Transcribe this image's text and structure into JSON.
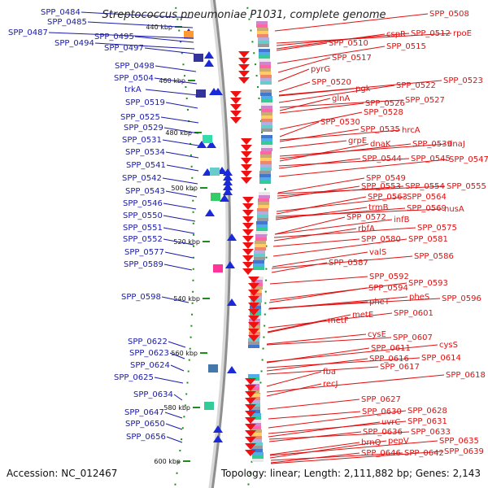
{
  "title": "Streptococcus pneumoniae P1031, complete genome",
  "footer": {
    "accession": "Accession: NC_012467",
    "summary": "Topology: linear; Length: 2,111,882 bp; Genes: 2,143"
  },
  "colors": {
    "left_label": "#1a1aa8",
    "right_label": "#e01010",
    "backbone": "#8f8f8f",
    "ruler": "#1a8f1a"
  },
  "scale_ticks": [
    "440 kbp",
    "460 kbp",
    "480 kbp",
    "500 kbp",
    "520 kbp",
    "540 kbp",
    "560 kbp",
    "580 kbp",
    "600 kbp"
  ],
  "left_labels": [
    "SPP_0484",
    "SPP_0485",
    "SPP_0487",
    "SPP_0494",
    "SPP_0495",
    "SPP_0497",
    "SPP_0498",
    "SPP_0504",
    "trkA",
    "SPP_0519",
    "SPP_0525",
    "SPP_0529",
    "SPP_0531",
    "SPP_0534",
    "SPP_0541",
    "SPP_0542",
    "SPP_0543",
    "SPP_0546",
    "SPP_0550",
    "SPP_0551",
    "SPP_0552",
    "SPP_0577",
    "SPP_0589",
    "SPP_0598",
    "SPP_0622",
    "SPP_0623",
    "SPP_0624",
    "SPP_0625",
    "SPP_0634",
    "SPP_0647",
    "SPP_0650",
    "SPP_0656"
  ],
  "right_labels": [
    "SPP_0508",
    "cspR",
    "SPP_0512",
    "rpoE",
    "SPP_0510",
    "SPP_0515",
    "SPP_0517",
    "pyrG",
    "SPP_0520",
    "pgk",
    "SPP_0522",
    "SPP_0523",
    "glnA",
    "SPP_0526",
    "SPP_0527",
    "SPP_0528",
    "SPP_0530",
    "SPP_0535",
    "hrcA",
    "grpE",
    "dnaK",
    "SPP_0539",
    "dnaJ",
    "SPP_0544",
    "SPP_0545",
    "SPP_0547",
    "SPP_0549",
    "SPP_0553",
    "SPP_0554",
    "SPP_0555",
    "SPP_0563",
    "SPP_0564",
    "trmB",
    "SPP_0569",
    "nusA",
    "SPP_0572",
    "infB",
    "rbfA",
    "SPP_0575",
    "SPP_0580",
    "SPP_0581",
    "valS",
    "SPP_0586",
    "SPP_0587",
    "SPP_0592",
    "SPP_0593",
    "SPP_0594",
    "pheS",
    "SPP_0596",
    "pheT",
    "metE",
    "SPP_0601",
    "metF",
    "cysE",
    "SPP_0607",
    "cysS",
    "SPP_0611",
    "SPP_0616",
    "SPP_0614",
    "SPP_0617",
    "SPP_0618",
    "fba",
    "recJ",
    "SPP_0627",
    "SPP_0630",
    "SPP_0628",
    "uvrC",
    "SPP_0631",
    "SPP_0636",
    "SPP_0633",
    "pepV",
    "SPP_0635",
    "brnQ",
    "SPP_0646",
    "SPP_0642",
    "SPP_0639"
  ]
}
